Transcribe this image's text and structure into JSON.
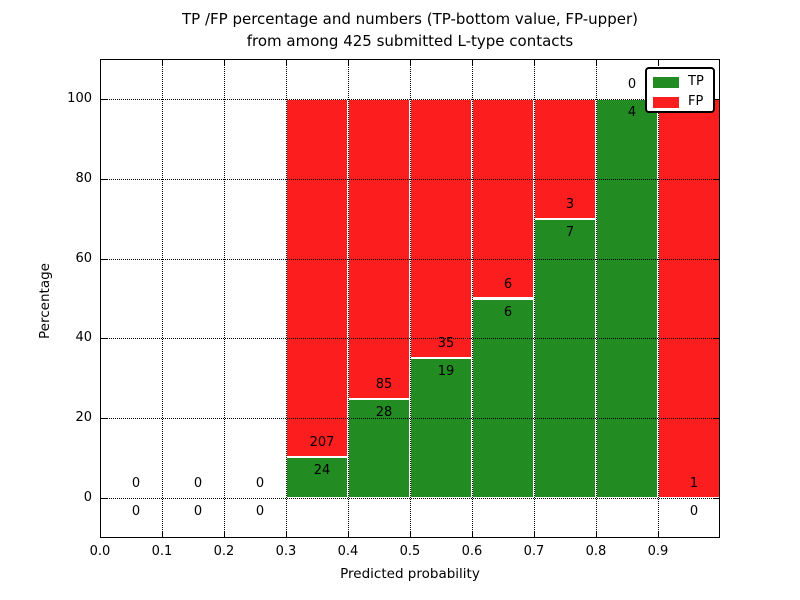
{
  "title": {
    "line1": "TP /FP percentage and numbers (TP-bottom value, FP-upper)",
    "line2": "from among 425 submitted L-type contacts"
  },
  "axes": {
    "ylabel": "Percentage",
    "xlabel": "Predicted probability"
  },
  "legend": [
    {
      "label": "TP",
      "color": "#228b22"
    },
    {
      "label": "FP",
      "color": "#fc1e1e"
    }
  ],
  "colors": {
    "tp_green": "#228b22",
    "fp_red": "#fc1e1e",
    "frame": "#000000",
    "background": "#ffffff"
  },
  "chart_data": {
    "type": "bar",
    "stacked": true,
    "title": "TP /FP percentage and numbers (TP-bottom value, FP-upper) from among 425 submitted L-type contacts",
    "xlabel": "Predicted probability",
    "ylabel": "Percentage",
    "total_contacts": 425,
    "xlim": [
      0.0,
      1.0
    ],
    "ylim": [
      -10,
      110
    ],
    "grid": true,
    "legend_position": "upper right",
    "bin_edges": [
      0.0,
      0.1,
      0.2,
      0.3,
      0.4,
      0.5,
      0.6,
      0.7,
      0.8,
      0.9,
      1.0
    ],
    "categories": [
      "0.0-0.1",
      "0.1-0.2",
      "0.2-0.3",
      "0.3-0.4",
      "0.4-0.5",
      "0.5-0.6",
      "0.6-0.7",
      "0.7-0.8",
      "0.8-0.9",
      "0.9-1.0"
    ],
    "series": [
      {
        "name": "TP",
        "values": [
          0,
          0,
          0,
          24,
          28,
          19,
          6,
          7,
          4,
          0
        ]
      },
      {
        "name": "FP",
        "values": [
          0,
          0,
          0,
          207,
          85,
          35,
          6,
          3,
          0,
          1
        ]
      }
    ],
    "yticks": [
      0,
      20,
      40,
      60,
      80,
      100
    ],
    "ytick_labels": [
      "0",
      "20",
      "40",
      "60",
      "80",
      "100"
    ],
    "xticks": [
      0.0,
      0.1,
      0.2,
      0.3,
      0.4,
      0.5,
      0.6,
      0.7,
      0.8,
      0.9
    ],
    "xtick_labels": [
      "0.0",
      "0.1",
      "0.2",
      "0.3",
      "0.4",
      "0.5",
      "0.6",
      "0.7",
      "0.8",
      "0.9"
    ]
  }
}
